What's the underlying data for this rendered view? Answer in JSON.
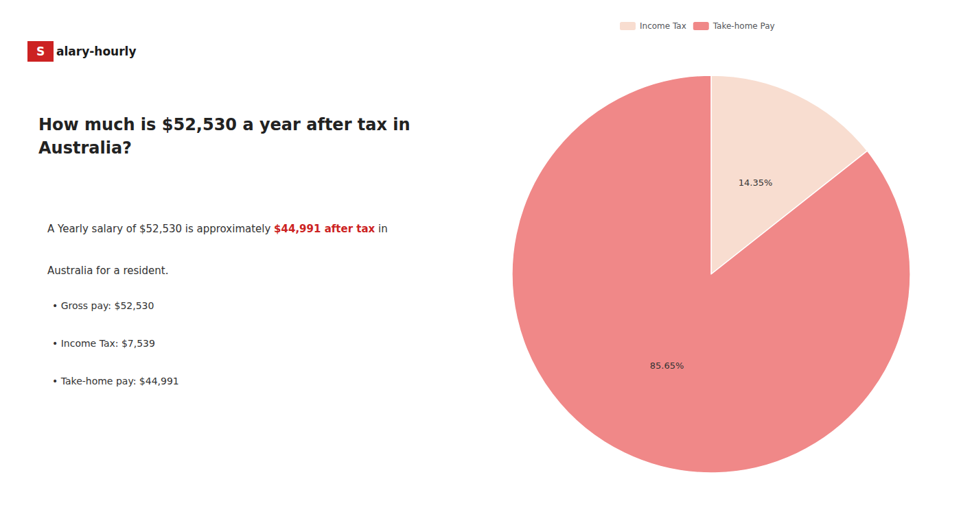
{
  "chart_data": {
    "type": "pie",
    "title": "How much is $52,530 a year after tax in\nAustralia?",
    "annotations": [
      {
        "text": "S",
        "color": "#cc2222"
      },
      "alary-hourly",
      "A Yearly salary of $52,530 is approximately ",
      {
        "text": "$44,991 after tax",
        "color": "#cc2222"
      },
      " in",
      "Australia for a resident.",
      "• Gross pay: $52,530",
      "• Income Tax: $7,539",
      "• Take-home pay: $44,991"
    ],
    "categories": [
      "Income Tax",
      "Take-home Pay"
    ],
    "values": [
      14.35,
      85.65
    ],
    "value_labels": [
      "14.35%",
      "85.65%"
    ],
    "colors": [
      "#f8ddd0",
      "#f08888"
    ],
    "data_labels": true,
    "legend": "top"
  }
}
